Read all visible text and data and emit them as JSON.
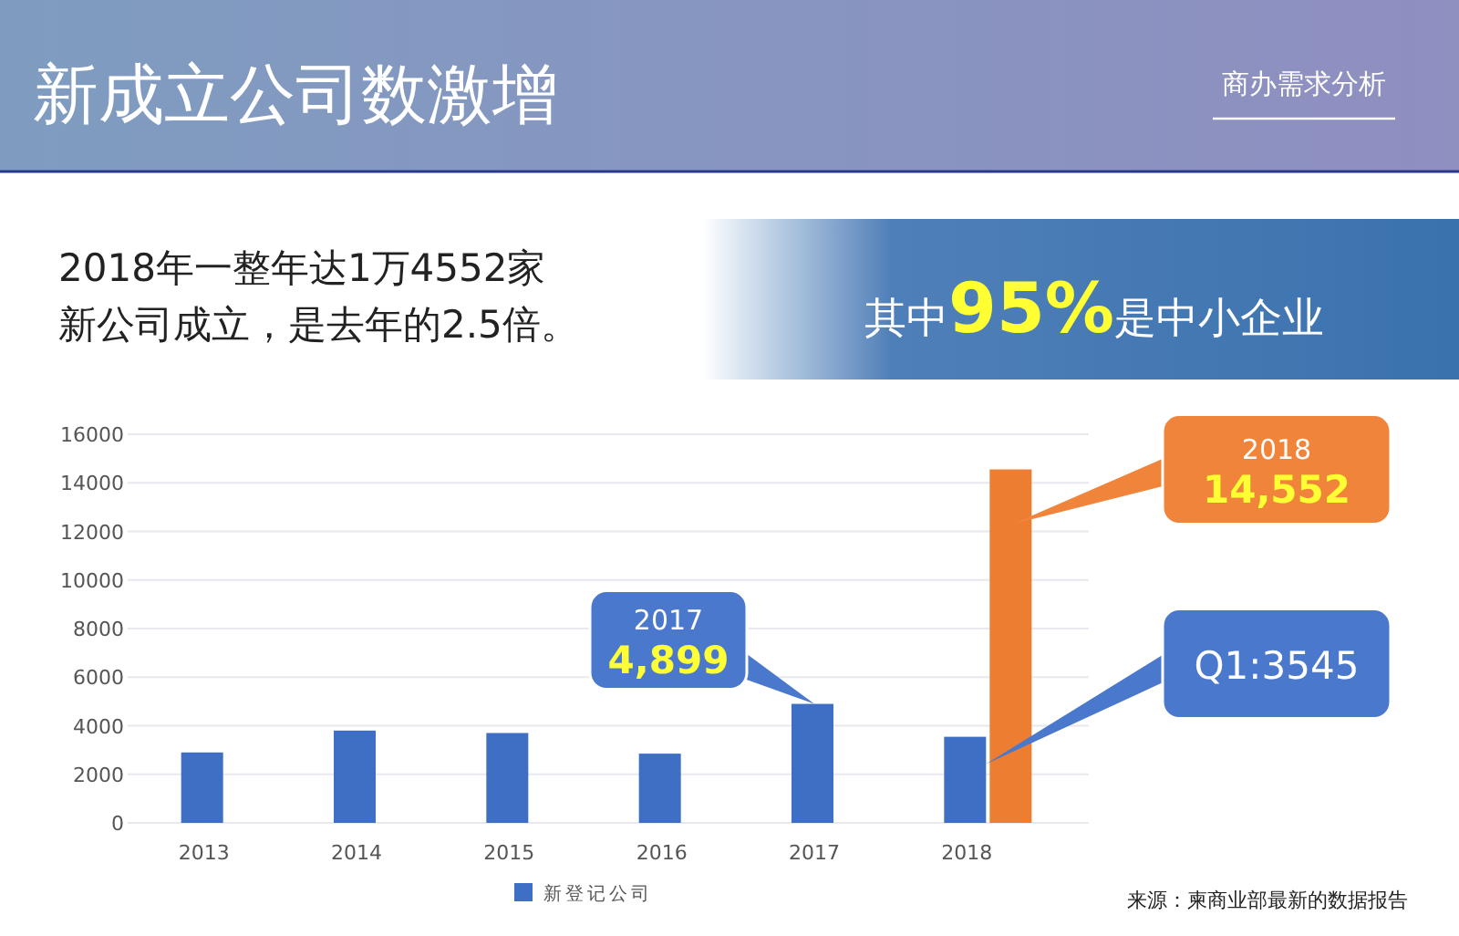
{
  "chart_data": {
    "type": "bar",
    "title": "新成立公司数激增",
    "subtitle": "商办需求分析",
    "categories": [
      "2013",
      "2014",
      "2015",
      "2016",
      "2017",
      "2018"
    ],
    "series": [
      {
        "name": "新登记公司",
        "color": "#3f6fc4",
        "values": [
          2900,
          3800,
          3700,
          2850,
          4899,
          3545
        ]
      },
      {
        "color": "#ed7d31",
        "values": [
          null,
          null,
          null,
          null,
          null,
          14552
        ]
      }
    ],
    "ylim": [
      0,
      16000
    ],
    "yticks": [
      0,
      2000,
      4000,
      6000,
      8000,
      10000,
      12000,
      14000,
      16000
    ],
    "grid": "y",
    "legend": "bottom",
    "annotations": [
      "2018年一整年达1万4552家",
      "新公司成立，是去年的2.5倍。",
      "其中95%是中小企业",
      "2017",
      "4,899",
      "2018",
      "14,552",
      "Q1:3545",
      "来源：柬商业部最新的数据报告"
    ]
  }
}
